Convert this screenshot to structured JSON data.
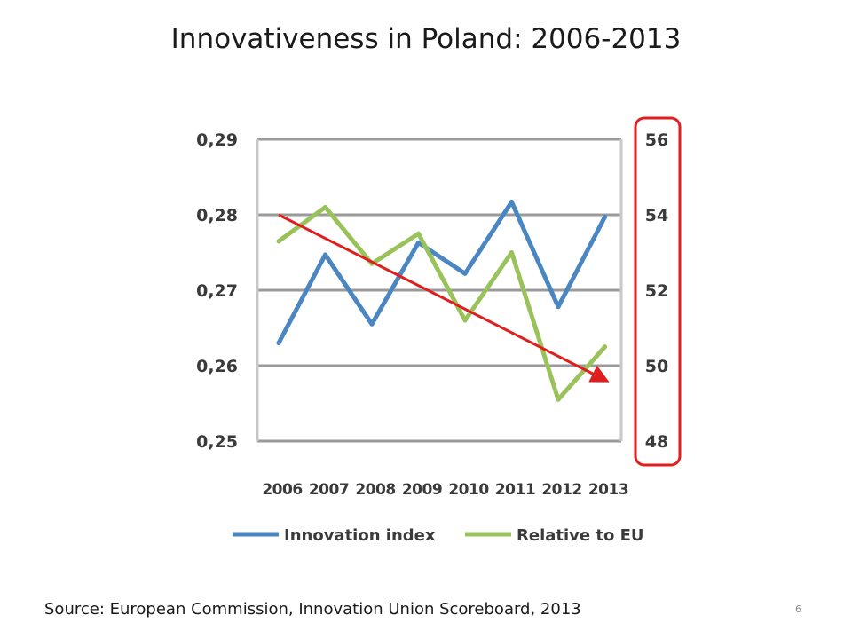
{
  "slide": {
    "title": "Innovativeness in Poland: 2006-2013",
    "source": "Source: European Commission, Innovation Union Scoreboard, 2013",
    "page_number": "6"
  },
  "chart_data": {
    "type": "line",
    "title": "",
    "x": [
      "2006",
      "2007",
      "2008",
      "2009",
      "2010",
      "2011",
      "2012",
      "2013"
    ],
    "y_left": {
      "ticks": [
        "0,29",
        "0,28",
        "0,27",
        "0,26",
        "0,25"
      ],
      "range": [
        0.25,
        0.29
      ]
    },
    "y_right": {
      "ticks": [
        "56",
        "54",
        "52",
        "50",
        "48"
      ],
      "range": [
        48,
        56
      ]
    },
    "series": [
      {
        "name": "Innovation index",
        "axis": "left",
        "color": "#4a86c2",
        "values": [
          0.263,
          0.2747,
          0.2655,
          0.2763,
          0.2722,
          0.2817,
          0.2678,
          0.2797
        ]
      },
      {
        "name": "Relative to EU",
        "axis": "right",
        "color": "#99c35a",
        "values": [
          53.3,
          54.2,
          52.7,
          53.5,
          51.2,
          53.0,
          49.1,
          50.5
        ]
      }
    ],
    "annotations": {
      "trend_arrow": {
        "color": "#e01e1e",
        "from_x": "2006",
        "from_value": 54.0,
        "to_x": "2013",
        "to_value": 49.6,
        "axis": "right"
      },
      "right_axis_highlight": {
        "color": "#e01e1e"
      }
    },
    "grid": true,
    "legend": "bottom"
  }
}
